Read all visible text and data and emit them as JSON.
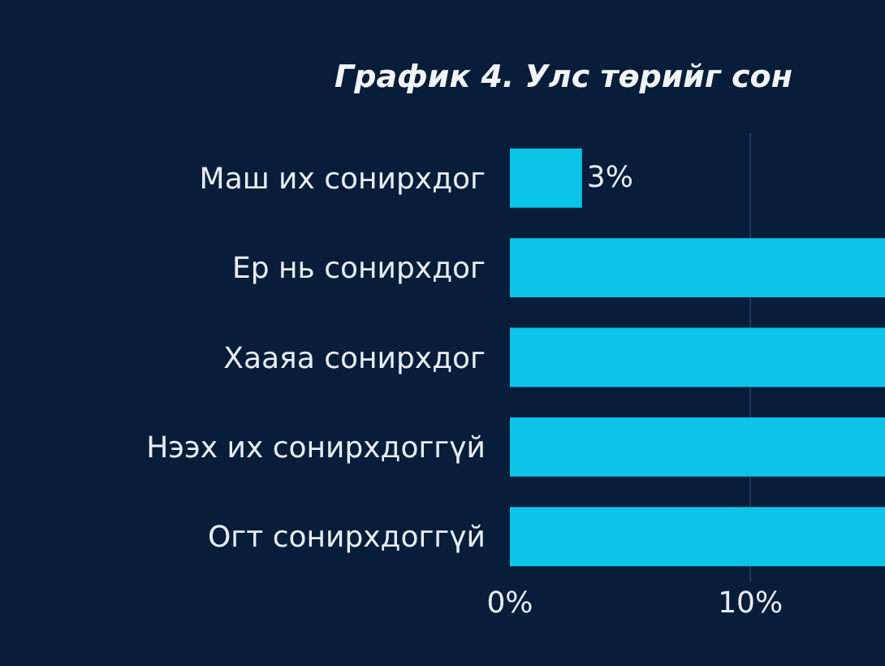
{
  "chart_data": {
    "type": "bar",
    "orientation": "horizontal",
    "title": "График 4. Улс төрийг сон",
    "categories": [
      "Маш их сонирхдог",
      "Ер нь сонирхдог",
      "Хааяа сонирхдог",
      "Нээх их сонирхдоггүй",
      "Огт сонирхдоггүй"
    ],
    "values": [
      3,
      15.6,
      15.6,
      15.6,
      15.6
    ],
    "value_labels": [
      "3%",
      null,
      null,
      null,
      null
    ],
    "color": "#0bc4e8",
    "xlim": [
      0,
      15.6
    ],
    "xticks": [
      {
        "value": 0,
        "label": "0%"
      },
      {
        "value": 10,
        "label": "10%"
      }
    ],
    "ref_lines": [
      {
        "axis": "x",
        "value": 10,
        "color": "#1f3a5e"
      }
    ],
    "legend": false
  }
}
